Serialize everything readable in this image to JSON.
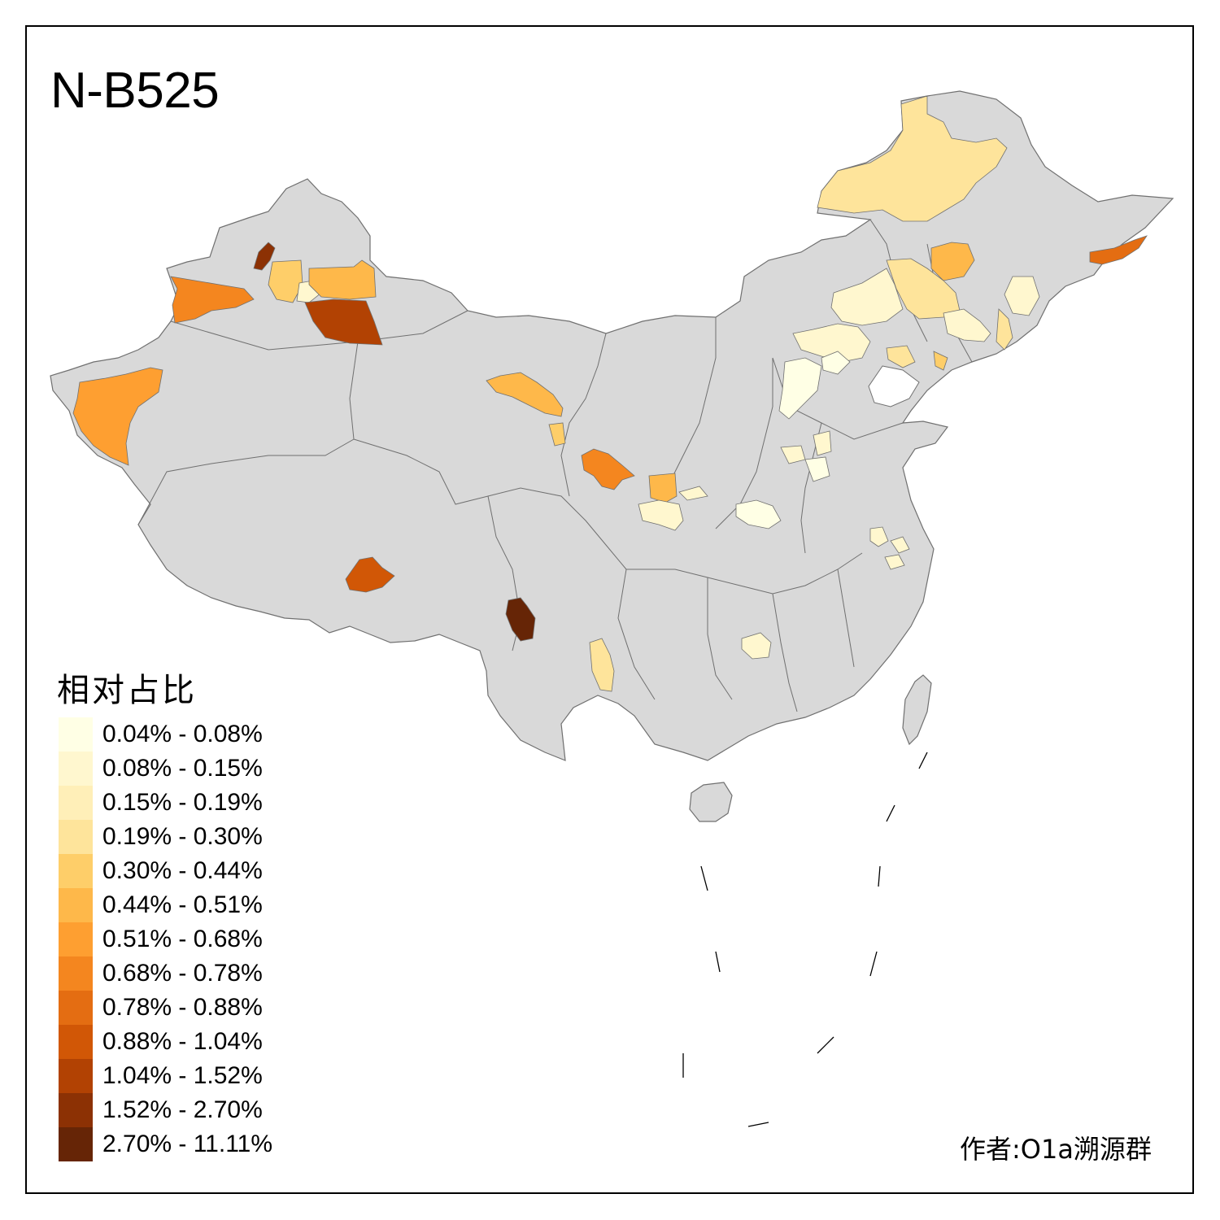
{
  "map": {
    "title": "N-B525",
    "base_color": "#d9d9d9",
    "border_color": "#707070"
  },
  "legend": {
    "title": "相对占比",
    "bins": [
      {
        "label": "0.04% - 0.08%",
        "color": "#ffffe5"
      },
      {
        "label": "0.08% - 0.15%",
        "color": "#fff7cf"
      },
      {
        "label": "0.15% - 0.19%",
        "color": "#ffefb8"
      },
      {
        "label": "0.19% - 0.30%",
        "color": "#fee49b"
      },
      {
        "label": "0.30% - 0.44%",
        "color": "#fece69"
      },
      {
        "label": "0.44% - 0.51%",
        "color": "#feb84a"
      },
      {
        "label": "0.51% - 0.68%",
        "color": "#fe9f31"
      },
      {
        "label": "0.68% - 0.78%",
        "color": "#f4861f"
      },
      {
        "label": "0.78% - 0.88%",
        "color": "#e46d12"
      },
      {
        "label": "0.88% - 1.04%",
        "color": "#d15706"
      },
      {
        "label": "1.04% - 1.52%",
        "color": "#b24203"
      },
      {
        "label": "1.52% - 2.70%",
        "color": "#8c3104"
      },
      {
        "label": "2.70% - 11.11%",
        "color": "#662506"
      }
    ]
  },
  "credit": {
    "text": "作者:O1a溯源群"
  }
}
